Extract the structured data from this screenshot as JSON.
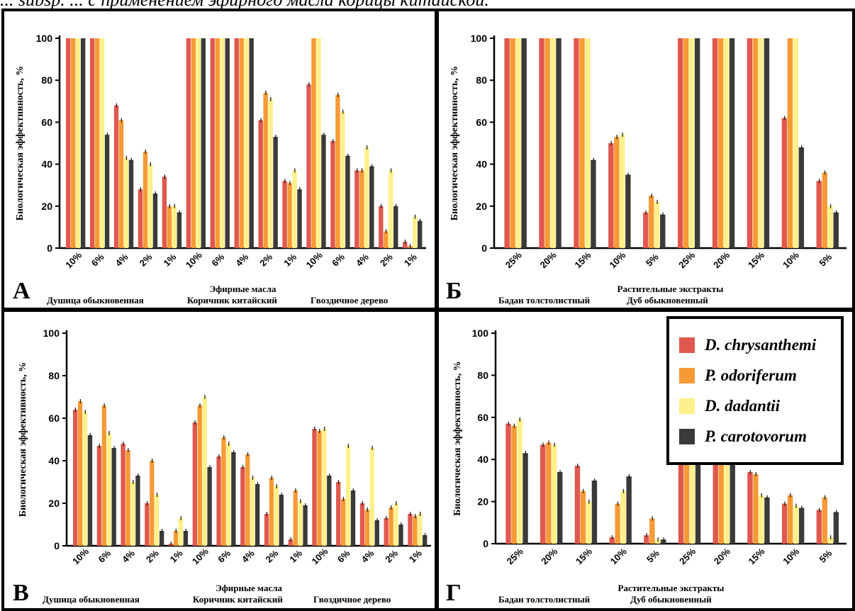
{
  "caption": "... subsp. ... с применением эфирного масла корицы китайской.",
  "legend": [
    {
      "name": "D. chrysanthemi",
      "color": "#e0584e"
    },
    {
      "name": "P. odoriferum",
      "color": "#f59a35"
    },
    {
      "name": "D. dadantii",
      "color": "#fdf08a"
    },
    {
      "name": "P. carotovorum",
      "color": "#3a3a3a"
    }
  ],
  "chart_data": [
    {
      "type": "bar",
      "panel_label": "А",
      "ylabel": "Биологическая эффективность, %",
      "xlabel": "Эфирные масла",
      "groups": [
        "Душица обыкновенная",
        "Коричник китайский",
        "Гвоздичное дерево"
      ],
      "categories": [
        "10%",
        "6%",
        "4%",
        "2%",
        "1%",
        "10%",
        "6%",
        "4%",
        "2%",
        "1%",
        "10%",
        "6%",
        "4%",
        "2%",
        "1%"
      ],
      "ylim": [
        0,
        100
      ],
      "yticks": [
        0,
        20,
        40,
        60,
        80,
        100
      ],
      "series": [
        {
          "name": "D. chrysanthemi",
          "values": [
            100,
            100,
            68,
            28,
            34,
            100,
            100,
            100,
            61,
            32,
            78,
            51,
            37,
            20,
            3
          ]
        },
        {
          "name": "P. odoriferum",
          "values": [
            100,
            100,
            61,
            46,
            20,
            100,
            100,
            100,
            74,
            31,
            100,
            73,
            37,
            8,
            1
          ]
        },
        {
          "name": "D. dadantii",
          "values": [
            100,
            100,
            43,
            40,
            20,
            100,
            100,
            100,
            71,
            37,
            100,
            65,
            48,
            37,
            15
          ]
        },
        {
          "name": "P. carotovorum",
          "values": [
            100,
            54,
            42,
            26,
            17,
            100,
            100,
            100,
            53,
            28,
            54,
            44,
            39,
            20,
            13
          ]
        }
      ]
    },
    {
      "type": "bar",
      "panel_label": "Б",
      "ylabel": "Биологическая эффективность, %",
      "xlabel": "Растительные экстракты",
      "groups": [
        "Бадан толстолистный",
        "Дуб обыкновенный"
      ],
      "categories": [
        "25%",
        "20%",
        "15%",
        "10%",
        "5%",
        "25%",
        "20%",
        "15%",
        "10%",
        "5%"
      ],
      "ylim": [
        0,
        100
      ],
      "yticks": [
        0,
        20,
        40,
        60,
        80,
        100
      ],
      "series": [
        {
          "name": "D. chrysanthemi",
          "values": [
            100,
            100,
            100,
            50,
            17,
            100,
            100,
            100,
            62,
            32
          ]
        },
        {
          "name": "P. odoriferum",
          "values": [
            100,
            100,
            100,
            53,
            25,
            100,
            100,
            100,
            100,
            36
          ]
        },
        {
          "name": "D. dadantii",
          "values": [
            100,
            100,
            100,
            54,
            22,
            100,
            100,
            100,
            100,
            20
          ]
        },
        {
          "name": "P. carotovorum",
          "values": [
            100,
            100,
            42,
            35,
            16,
            100,
            100,
            100,
            48,
            17
          ]
        }
      ]
    },
    {
      "type": "bar",
      "panel_label": "В",
      "ylabel": "Биологическая эффективность, %",
      "xlabel": "Эфирные масла",
      "groups": [
        "Душица обыкновенная",
        "Коричник китайский",
        "Гвоздичное дерево"
      ],
      "categories": [
        "10%",
        "6%",
        "4%",
        "2%",
        "1%",
        "10%",
        "6%",
        "4%",
        "2%",
        "1%",
        "10%",
        "6%",
        "4%",
        "2%",
        "1%"
      ],
      "ylim": [
        0,
        100
      ],
      "yticks": [
        0,
        20,
        40,
        60,
        80,
        100
      ],
      "series": [
        {
          "name": "D. chrysanthemi",
          "values": [
            64,
            47,
            48,
            20,
            1,
            58,
            42,
            37,
            15,
            3,
            55,
            30,
            20,
            13,
            15
          ]
        },
        {
          "name": "P. odoriferum",
          "values": [
            68,
            66,
            45,
            40,
            7,
            66,
            51,
            43,
            32,
            26,
            54,
            22,
            17,
            18,
            14
          ]
        },
        {
          "name": "D. dadantii",
          "values": [
            63,
            53,
            30,
            24,
            13,
            70,
            48,
            32,
            28,
            21,
            55,
            47,
            46,
            20,
            15
          ]
        },
        {
          "name": "P. carotovorum",
          "values": [
            52,
            46,
            33,
            7,
            7,
            37,
            44,
            29,
            24,
            19,
            33,
            26,
            12,
            10,
            5
          ]
        }
      ]
    },
    {
      "type": "bar",
      "panel_label": "Г",
      "ylabel": "Биологическая эффективность, %",
      "xlabel": "Растительные экстракты",
      "groups": [
        "Бадан толстолистный",
        "Дуб обыкновенный"
      ],
      "categories": [
        "25%",
        "20%",
        "15%",
        "10%",
        "5%",
        "25%",
        "20%",
        "15%",
        "10%",
        "5%"
      ],
      "ylim": [
        0,
        100
      ],
      "yticks": [
        0,
        20,
        40,
        60,
        80,
        100
      ],
      "series": [
        {
          "name": "D. chrysanthemi",
          "values": [
            57,
            47,
            37,
            3,
            4,
            72,
            57,
            34,
            19,
            16
          ]
        },
        {
          "name": "P. odoriferum",
          "values": [
            56,
            48,
            25,
            19,
            12,
            67,
            55,
            33,
            23,
            22
          ]
        },
        {
          "name": "D. dadantii",
          "values": [
            59,
            47,
            20,
            25,
            2,
            63,
            58,
            23,
            18,
            3
          ]
        },
        {
          "name": "P. carotovorum",
          "values": [
            43,
            34,
            30,
            32,
            2,
            59,
            44,
            22,
            17,
            15
          ]
        }
      ]
    }
  ]
}
